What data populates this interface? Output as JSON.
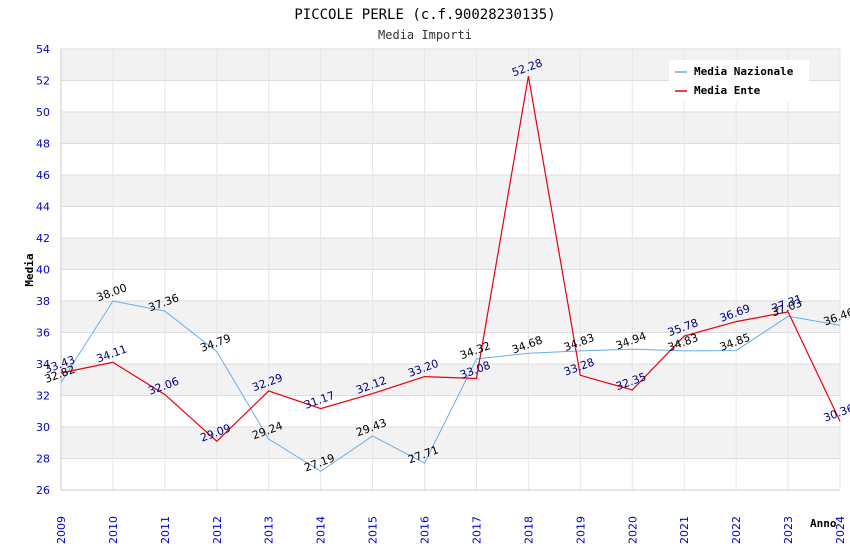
{
  "chart_data": {
    "type": "line",
    "title": "PICCOLE PERLE (c.f.90028230135)",
    "subtitle": "Media Importi",
    "xlabel": "Anno",
    "ylabel": "Media",
    "x": [
      "2009",
      "2010",
      "2011",
      "2012",
      "2013",
      "2014",
      "2015",
      "2016",
      "2017",
      "2018",
      "2019",
      "2020",
      "2021",
      "2022",
      "2023",
      "2024"
    ],
    "ylim": [
      26,
      54
    ],
    "yticks": [
      "26",
      "28",
      "30",
      "32",
      "34",
      "36",
      "38",
      "40",
      "42",
      "44",
      "46",
      "48",
      "50",
      "52",
      "54"
    ],
    "grid": true,
    "legend_position": "top-right",
    "series": [
      {
        "name": "Media Nazionale",
        "color": "#6aaee8",
        "values": [
          32.82,
          38.0,
          37.36,
          34.79,
          29.24,
          27.19,
          29.43,
          27.71,
          34.32,
          34.68,
          34.83,
          34.94,
          34.83,
          34.85,
          37.03,
          36.46
        ],
        "labels": [
          "32.82",
          "38.00",
          "37.36",
          "34.79",
          "29.24",
          "27.19",
          "29.43",
          "27.71",
          "34.32",
          "34.68",
          "34.83",
          "34.94",
          "34.83",
          "34.85",
          "37.03",
          "36.46"
        ]
      },
      {
        "name": "Media Ente",
        "color": "#e8000b",
        "values": [
          33.43,
          34.11,
          32.06,
          29.09,
          32.29,
          31.17,
          32.12,
          33.2,
          33.08,
          52.28,
          33.28,
          32.35,
          35.78,
          36.69,
          37.31,
          30.36
        ],
        "labels": [
          "33.43",
          "34.11",
          "32.06",
          "29.09",
          "32.29",
          "31.17",
          "32.12",
          "33.20",
          "33.08",
          "52.28",
          "33.28",
          "32.35",
          "35.78",
          "36.69",
          "37.31",
          "30.36"
        ]
      }
    ]
  }
}
